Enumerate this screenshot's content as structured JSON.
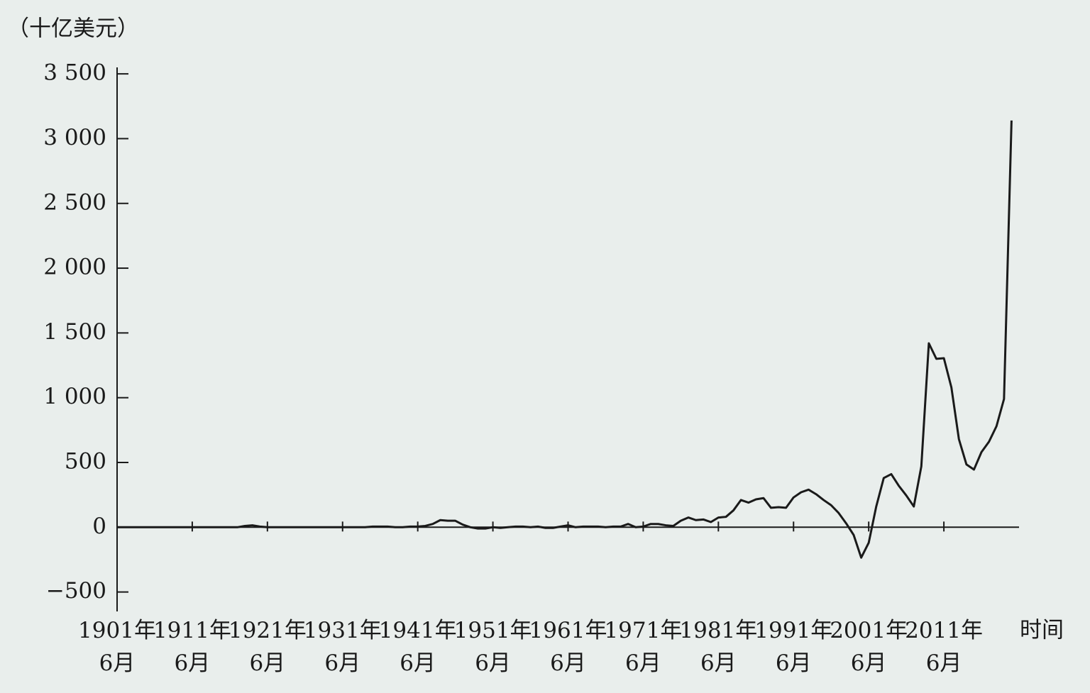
{
  "chart_data": {
    "type": "line",
    "y_label": "（十亿美元）",
    "x_label": "时间",
    "x": [
      1901,
      1902,
      1903,
      1904,
      1905,
      1906,
      1907,
      1908,
      1909,
      1910,
      1911,
      1912,
      1913,
      1914,
      1915,
      1916,
      1917,
      1918,
      1919,
      1920,
      1921,
      1922,
      1923,
      1924,
      1925,
      1926,
      1927,
      1928,
      1929,
      1930,
      1931,
      1932,
      1933,
      1934,
      1935,
      1936,
      1937,
      1938,
      1939,
      1940,
      1941,
      1942,
      1943,
      1944,
      1945,
      1946,
      1947,
      1948,
      1949,
      1950,
      1951,
      1952,
      1953,
      1954,
      1955,
      1956,
      1957,
      1958,
      1959,
      1960,
      1961,
      1962,
      1963,
      1964,
      1965,
      1966,
      1967,
      1968,
      1969,
      1970,
      1971,
      1972,
      1973,
      1974,
      1975,
      1976,
      1977,
      1978,
      1979,
      1980,
      1981,
      1982,
      1983,
      1984,
      1985,
      1986,
      1987,
      1988,
      1989,
      1990,
      1991,
      1992,
      1993,
      1994,
      1995,
      1996,
      1997,
      1998,
      1999,
      2000,
      2001,
      2002,
      2003,
      2004,
      2005,
      2006,
      2007,
      2008,
      2009,
      2010,
      2011,
      2012,
      2013,
      2014,
      2015,
      2016,
      2017,
      2018,
      2019,
      2020
    ],
    "values": [
      0,
      0,
      0,
      0,
      0,
      0,
      0,
      0,
      0,
      0,
      0,
      0,
      0,
      0,
      0,
      0,
      0,
      10,
      15,
      5,
      0,
      0,
      0,
      0,
      0,
      0,
      0,
      0,
      0,
      0,
      0,
      0,
      0,
      0,
      5,
      5,
      5,
      0,
      0,
      5,
      5,
      10,
      25,
      55,
      50,
      50,
      20,
      0,
      -10,
      -10,
      0,
      -5,
      0,
      5,
      5,
      0,
      5,
      -5,
      -5,
      5,
      15,
      0,
      5,
      5,
      5,
      0,
      5,
      5,
      25,
      0,
      5,
      25,
      25,
      15,
      10,
      50,
      75,
      55,
      60,
      40,
      75,
      80,
      130,
      210,
      190,
      215,
      225,
      150,
      155,
      150,
      230,
      270,
      290,
      255,
      210,
      170,
      110,
      30,
      -60,
      -235,
      -120,
      160,
      380,
      410,
      320,
      245,
      160,
      470,
      1420,
      1300,
      1305,
      1080,
      680,
      485,
      445,
      580,
      660,
      780,
      990,
      3140
    ],
    "color": "#1a1a1a",
    "xlim": [
      1901,
      2021
    ],
    "xticks": [
      {
        "value": 1901,
        "label": "1901年\n6月"
      },
      {
        "value": 1911,
        "label": "1911年\n6月"
      },
      {
        "value": 1921,
        "label": "1921年\n6月"
      },
      {
        "value": 1931,
        "label": "1931年\n6月"
      },
      {
        "value": 1941,
        "label": "1941年\n6月"
      },
      {
        "value": 1951,
        "label": "1951年\n6月"
      },
      {
        "value": 1961,
        "label": "1961年\n6月"
      },
      {
        "value": 1971,
        "label": "1971年\n6月"
      },
      {
        "value": 1981,
        "label": "1981年\n6月"
      },
      {
        "value": 1991,
        "label": "1991年\n6月"
      },
      {
        "value": 2001,
        "label": "2001年\n6月"
      },
      {
        "value": 2011,
        "label": "2011年\n6月"
      }
    ],
    "ylim": [
      -650,
      3550
    ],
    "yticks": [
      {
        "value": 3500,
        "label": "3 500"
      },
      {
        "value": 3000,
        "label": "3 000"
      },
      {
        "value": 2500,
        "label": "2 500"
      },
      {
        "value": 2000,
        "label": "2 000"
      },
      {
        "value": 1500,
        "label": "1 500"
      },
      {
        "value": 1000,
        "label": "1 000"
      },
      500,
      0,
      {
        "value": -500,
        "label": "−500"
      }
    ]
  }
}
